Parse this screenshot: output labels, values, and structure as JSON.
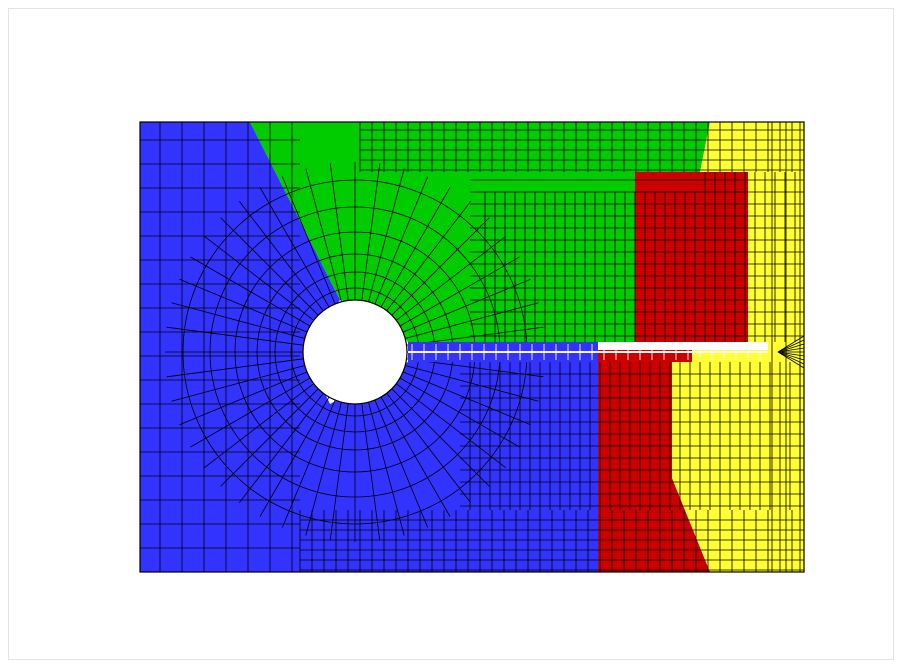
{
  "figure": {
    "description_visible_text": "",
    "regions": [
      {
        "id": "blue-upper-left-region",
        "color": "#3333ff"
      },
      {
        "id": "green-upper-region",
        "color": "#00cc00"
      },
      {
        "id": "red-upper-region",
        "color": "#cc0000"
      },
      {
        "id": "yellow-right-region",
        "color": "#ffff33"
      },
      {
        "id": "blue-lower-region",
        "color": "#3333ff"
      },
      {
        "id": "red-lower-region",
        "color": "#cc0000"
      },
      {
        "id": "yellow-lower-right-region",
        "color": "#ffff33"
      }
    ],
    "mesh_line_color": "#000000",
    "crack_line_color": "#ffffff",
    "hole_color": "#ffffff"
  }
}
